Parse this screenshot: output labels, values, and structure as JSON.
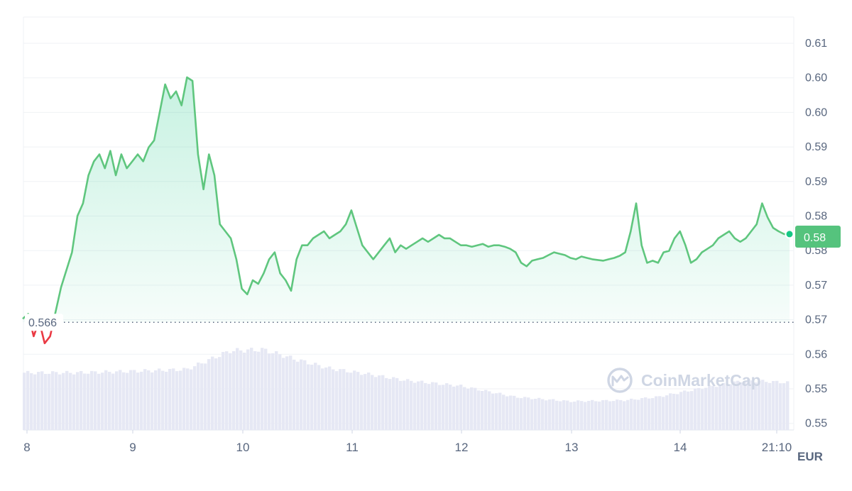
{
  "chart_data": {
    "type": "area",
    "y_tick_labels": [
      "0.61",
      "0.60",
      "0.60",
      "0.59",
      "0.59",
      "0.58",
      "0.58",
      "0.57",
      "0.57",
      "0.56",
      "0.55",
      "0.55"
    ],
    "x_tick_labels": [
      "8",
      "9",
      "10",
      "11",
      "12",
      "13",
      "14",
      "21:10"
    ],
    "unit_label": "EUR",
    "watermark": "CoinMarketCap",
    "reference_label": "0.566",
    "reference_value": 0.566,
    "current_label": "0.58",
    "ylim": [
      0.55,
      0.608
    ],
    "xlim": [
      8.0,
      15.0
    ],
    "colors": {
      "up": "#16c784",
      "line_up": "#5fc67e",
      "down": "#ea3943",
      "volume": "#e6e8f4",
      "grid": "#eff2f5",
      "badge": "#55c37d"
    },
    "series": [
      {
        "x": [
          8.0,
          8.05,
          8.1,
          8.15,
          8.2,
          8.25,
          8.3,
          8.35,
          8.4,
          8.45,
          8.5,
          8.55,
          8.6,
          8.65,
          8.7,
          8.75,
          8.8,
          8.85,
          8.9,
          8.95,
          9.0,
          9.05,
          9.1,
          9.15,
          9.2,
          9.25,
          9.3,
          9.35,
          9.4,
          9.45,
          9.5,
          9.55,
          9.6,
          9.65,
          9.7,
          9.75,
          9.8,
          9.85,
          9.9,
          9.95,
          10.0,
          10.05,
          10.1,
          10.15,
          10.2,
          10.25,
          10.3,
          10.35,
          10.4,
          10.45,
          10.5,
          10.55,
          10.6,
          10.65,
          10.7,
          10.75,
          10.8,
          10.85,
          10.9,
          10.95,
          11.0,
          11.05,
          11.1,
          11.15,
          11.2,
          11.25,
          11.3,
          11.35,
          11.4,
          11.45,
          11.5,
          11.55,
          11.6,
          11.65,
          11.7,
          11.75,
          11.8,
          11.85,
          11.9,
          11.95,
          12.0,
          12.05,
          12.1,
          12.15,
          12.2,
          12.25,
          12.3,
          12.35,
          12.4,
          12.45,
          12.5,
          12.55,
          12.6,
          12.65,
          12.7,
          12.75,
          12.8,
          12.85,
          12.9,
          12.95,
          13.0,
          13.05,
          13.1,
          13.15,
          13.2,
          13.25,
          13.3,
          13.35,
          13.4,
          13.45,
          13.5,
          13.55,
          13.6,
          13.65,
          13.7,
          13.75,
          13.8,
          13.85,
          13.9,
          13.95,
          14.0,
          14.05,
          14.1,
          14.15,
          14.2,
          14.25,
          14.3,
          14.35,
          14.4,
          14.45,
          14.5,
          14.55,
          14.6,
          14.65,
          14.7,
          14.75,
          14.8,
          14.85,
          14.9,
          14.95,
          15.0
        ],
        "y": [
          0.5665,
          0.5672,
          0.564,
          0.5662,
          0.563,
          0.564,
          0.5675,
          0.571,
          0.5735,
          0.576,
          0.5812,
          0.583,
          0.587,
          0.589,
          0.59,
          0.588,
          0.5905,
          0.587,
          0.59,
          0.588,
          0.589,
          0.59,
          0.589,
          0.591,
          0.592,
          0.596,
          0.6,
          0.598,
          0.599,
          0.597,
          0.601,
          0.6005,
          0.59,
          0.585,
          0.59,
          0.587,
          0.58,
          0.579,
          0.578,
          0.575,
          0.5708,
          0.57,
          0.572,
          0.5715,
          0.573,
          0.575,
          0.576,
          0.573,
          0.572,
          0.5705,
          0.575,
          0.577,
          0.577,
          0.578,
          0.5785,
          0.579,
          0.578,
          0.5785,
          0.579,
          0.58,
          0.582,
          0.5795,
          0.577,
          0.576,
          0.575,
          0.576,
          0.577,
          0.578,
          0.576,
          0.577,
          0.5765,
          0.577,
          0.5775,
          0.578,
          0.5775,
          0.578,
          0.5785,
          0.578,
          0.578,
          0.5775,
          0.577,
          0.577,
          0.5768,
          0.577,
          0.5772,
          0.5768,
          0.577,
          0.577,
          0.5768,
          0.5765,
          0.576,
          0.5745,
          0.574,
          0.5748,
          0.575,
          0.5752,
          0.5756,
          0.576,
          0.5758,
          0.5756,
          0.5752,
          0.575,
          0.5754,
          0.5752,
          0.575,
          0.5749,
          0.5748,
          0.575,
          0.5752,
          0.5755,
          0.576,
          0.579,
          0.583,
          0.577,
          0.5745,
          0.5748,
          0.5745,
          0.576,
          0.5762,
          0.578,
          0.579,
          0.577,
          0.5745,
          0.575,
          0.576,
          0.5765,
          0.577,
          0.578,
          0.5785,
          0.579,
          0.578,
          0.5775,
          0.578,
          0.579,
          0.58,
          0.583,
          0.581,
          0.5795,
          0.579,
          0.5786,
          0.5786
        ]
      }
    ],
    "volume": [
      {
        "x": 8.0,
        "v": 0.52
      },
      {
        "x": 8.5,
        "v": 0.52
      },
      {
        "x": 8.9,
        "v": 0.53
      },
      {
        "x": 9.5,
        "v": 0.55
      },
      {
        "x": 9.9,
        "v": 0.72
      },
      {
        "x": 10.2,
        "v": 0.73
      },
      {
        "x": 10.5,
        "v": 0.64
      },
      {
        "x": 10.8,
        "v": 0.56
      },
      {
        "x": 11.2,
        "v": 0.5
      },
      {
        "x": 11.5,
        "v": 0.45
      },
      {
        "x": 12.0,
        "v": 0.4
      },
      {
        "x": 12.5,
        "v": 0.3
      },
      {
        "x": 13.0,
        "v": 0.26
      },
      {
        "x": 13.5,
        "v": 0.27
      },
      {
        "x": 13.8,
        "v": 0.3
      },
      {
        "x": 14.2,
        "v": 0.38
      },
      {
        "x": 14.6,
        "v": 0.45
      },
      {
        "x": 15.0,
        "v": 0.43
      }
    ]
  }
}
